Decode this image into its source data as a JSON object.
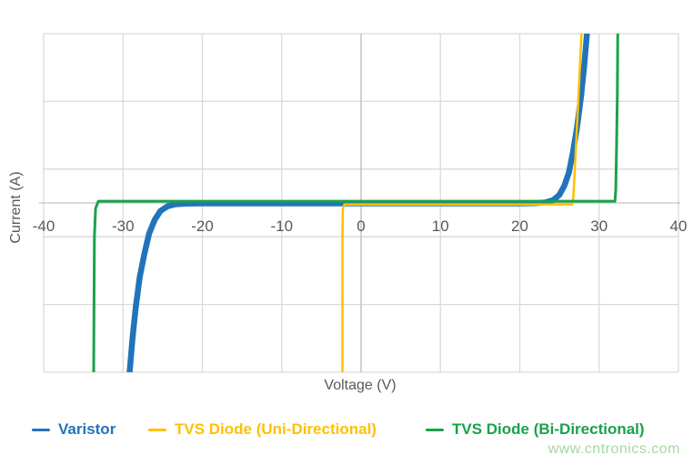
{
  "watermark": {
    "text": "www.cntronics.com",
    "color": "#A6D8A0"
  },
  "chart_data": {
    "type": "line",
    "title": "",
    "xlabel": "Voltage (V)",
    "ylabel": "Current (A)",
    "xlim": [
      -40,
      40
    ],
    "ylim": [
      -2.5,
      2.5
    ],
    "x_ticks": [
      -40,
      -30,
      -20,
      -10,
      0,
      10,
      20,
      30,
      40
    ],
    "y_gridline_values": [
      -2.5,
      -1.5,
      -0.5,
      0.5,
      1.5,
      2.5
    ],
    "y_tick_labels_shown": false,
    "grid": true,
    "legend_position": "bottom",
    "styles": {
      "grid_color": "#DADADA",
      "zero_axis_color": "#C3C3C3",
      "tick_text_color": "#595959",
      "axis_title_color": "#595959"
    },
    "series": [
      {
        "name": "Varistor",
        "color": "#2273BC",
        "stroke_width": 6.5,
        "points": [
          [
            -29.2,
            -2.55
          ],
          [
            -28.8,
            -2.0
          ],
          [
            -28.4,
            -1.55
          ],
          [
            -27.9,
            -1.1
          ],
          [
            -27.3,
            -0.75
          ],
          [
            -26.7,
            -0.45
          ],
          [
            -26.0,
            -0.25
          ],
          [
            -25.3,
            -0.12
          ],
          [
            -24.4,
            -0.05
          ],
          [
            -23.4,
            -0.02
          ],
          [
            -22.0,
            -0.01
          ],
          [
            -20.0,
            -0.007
          ],
          [
            0,
            -0.007
          ],
          [
            20.0,
            -0.007
          ],
          [
            22.0,
            -0.004
          ],
          [
            23.3,
            0.01
          ],
          [
            24.2,
            0.04
          ],
          [
            25.0,
            0.12
          ],
          [
            25.6,
            0.25
          ],
          [
            26.2,
            0.45
          ],
          [
            26.7,
            0.75
          ],
          [
            27.2,
            1.1
          ],
          [
            27.7,
            1.55
          ],
          [
            28.1,
            2.0
          ],
          [
            28.5,
            2.55
          ]
        ]
      },
      {
        "name": "TVS Diode (Uni-Directional)",
        "color": "#FFC000",
        "stroke_width": 2.5,
        "points": [
          [
            -2.35,
            -2.55
          ],
          [
            -2.35,
            -0.6
          ],
          [
            -2.3,
            -0.1
          ],
          [
            -2.1,
            -0.022
          ],
          [
            0,
            -0.022
          ],
          [
            26.6,
            -0.022
          ],
          [
            26.75,
            0.08
          ],
          [
            26.95,
            0.5
          ],
          [
            27.2,
            1.1
          ],
          [
            27.5,
            1.8
          ],
          [
            27.8,
            2.55
          ]
        ]
      },
      {
        "name": "TVS Diode (Bi-Directional)",
        "color": "#19A24A",
        "stroke_width": 3,
        "points": [
          [
            -33.7,
            -2.55
          ],
          [
            -33.65,
            -1.4
          ],
          [
            -33.6,
            -0.5
          ],
          [
            -33.45,
            -0.08
          ],
          [
            -33.1,
            0.025
          ],
          [
            0,
            0.025
          ],
          [
            32.0,
            0.025
          ],
          [
            32.1,
            0.2
          ],
          [
            32.2,
            0.8
          ],
          [
            32.3,
            1.6
          ],
          [
            32.35,
            2.55
          ]
        ]
      }
    ]
  }
}
